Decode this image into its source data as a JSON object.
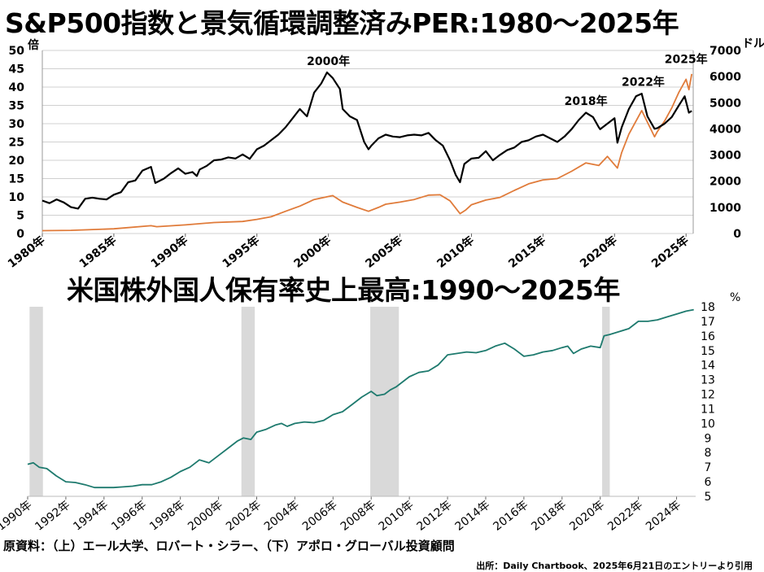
{
  "titles": {
    "top": "S&P500指数と景気循環調整済みPER:1980～2025年",
    "bottom": "米国株外国人保有率史上最高:1990～2025年"
  },
  "footer": {
    "source": "原資料：（上）エール大学、ロバート・シラー、（下）アポロ・グローバル投資顧問",
    "credit": "出所：Daily Chartbook、2025年6月21日のエントリーより引用"
  },
  "colors": {
    "cape": "#000000",
    "sp500": "#e07b3a",
    "foreign_share": "#1e7a6e",
    "recession": "#d9d9d9"
  },
  "chart_data": [
    {
      "type": "line",
      "left_unit": "倍",
      "right_unit": "ドル",
      "left_ticks": [
        "0",
        "5",
        "10",
        "15",
        "20",
        "25",
        "30",
        "35",
        "40",
        "45",
        "50"
      ],
      "right_ticks": [
        "0",
        "1000",
        "2000",
        "3000",
        "4000",
        "5000",
        "6000",
        "7000"
      ],
      "x_ticks": [
        "1980年",
        "1985年",
        "1990年",
        "1995年",
        "2000年",
        "2005年",
        "2010年",
        "2015年",
        "2020年",
        "2025年"
      ],
      "xlim": [
        1980,
        2025.5
      ],
      "ylim_left": [
        0,
        50
      ],
      "ylim_right": [
        0,
        7000
      ],
      "annotations": [
        {
          "text": "2000年",
          "x": 2000,
          "y": 44.2
        },
        {
          "text": "2018年",
          "x": 2018,
          "y": 33.3
        },
        {
          "text": "2022年",
          "x": 2022,
          "y": 38.6
        },
        {
          "text": "2025年",
          "x": 2025,
          "y": 44.8
        }
      ],
      "series": [
        {
          "axis": "left",
          "x": [
            1980,
            1980.5,
            1981,
            1981.5,
            1982,
            1982.5,
            1983,
            1983.5,
            1984,
            1984.5,
            1985,
            1985.5,
            1986,
            1986.5,
            1987,
            1987.6,
            1987.9,
            1988,
            1988.5,
            1989,
            1989.5,
            1990,
            1990.5,
            1990.8,
            1991,
            1991.5,
            1992,
            1992.5,
            1993,
            1993.5,
            1994,
            1994.5,
            1995,
            1995.5,
            1996,
            1996.5,
            1997,
            1997.5,
            1998,
            1998.5,
            1999,
            1999.5,
            1999.9,
            2000.3,
            2000.8,
            2001,
            2001.5,
            2002,
            2002.5,
            2002.8,
            2003,
            2003.5,
            2004,
            2004.5,
            2005,
            2005.5,
            2006,
            2006.5,
            2007,
            2007.5,
            2008,
            2008.5,
            2008.9,
            2009.2,
            2009.5,
            2010,
            2010.5,
            2011,
            2011.5,
            2012,
            2012.5,
            2013,
            2013.5,
            2014,
            2014.5,
            2015,
            2015.5,
            2016,
            2016.5,
            2017,
            2017.5,
            2018,
            2018.5,
            2018.9,
            2019,
            2019.5,
            2020,
            2020.2,
            2020.5,
            2021,
            2021.5,
            2021.9,
            2022.3,
            2022.8,
            2023,
            2023.5,
            2024,
            2024.5,
            2024.9,
            2025.2,
            2025.4
          ],
          "values": [
            9,
            8.3,
            9.3,
            8.5,
            7.2,
            6.8,
            9.5,
            9.8,
            9.5,
            9.3,
            10.6,
            11.3,
            14,
            14.5,
            17.2,
            18.2,
            13.8,
            14,
            15,
            16.5,
            17.8,
            16.3,
            16.8,
            15.7,
            17.5,
            18.5,
            20,
            20.2,
            20.8,
            20.5,
            21.6,
            20.4,
            23,
            24,
            25.5,
            27,
            29,
            31.5,
            34,
            32,
            38.5,
            41,
            44,
            42.5,
            39.5,
            34,
            32,
            31,
            25,
            23,
            24,
            26,
            27,
            26.5,
            26.3,
            26.8,
            27,
            26.8,
            27.5,
            25.5,
            24,
            20,
            16,
            14,
            19,
            20.5,
            20.7,
            22.5,
            20,
            21.5,
            22.8,
            23.5,
            25,
            25.5,
            26.5,
            27,
            26,
            25,
            26.5,
            28.5,
            31,
            33,
            31.8,
            29,
            28.5,
            30,
            31.5,
            24.8,
            29,
            34,
            37.5,
            38.2,
            32,
            28.6,
            28.8,
            30,
            31.8,
            35,
            37.5,
            33,
            33.5
          ]
        },
        {
          "axis": "right",
          "x": [
            1980,
            1982,
            1985,
            1987.6,
            1988,
            1990,
            1992,
            1994,
            1995,
            1996,
            1997,
            1998,
            1999,
            2000.3,
            2001,
            2002,
            2002.8,
            2003.5,
            2004,
            2005,
            2006,
            2007,
            2007.8,
            2008.5,
            2009.2,
            2009.6,
            2010,
            2011,
            2012,
            2013,
            2014,
            2015,
            2016,
            2017,
            2018,
            2018.9,
            2019.5,
            2020.2,
            2020.5,
            2021,
            2021.9,
            2022.8,
            2023,
            2023.5,
            2024,
            2024.5,
            2025,
            2025.2,
            2025.4
          ],
          "values": [
            110,
            120,
            180,
            300,
            260,
            330,
            420,
            460,
            540,
            640,
            850,
            1050,
            1300,
            1450,
            1200,
            1000,
            850,
            1000,
            1120,
            1200,
            1300,
            1470,
            1480,
            1250,
            760,
            900,
            1100,
            1280,
            1380,
            1650,
            1900,
            2050,
            2100,
            2380,
            2700,
            2600,
            2950,
            2500,
            3100,
            3800,
            4700,
            3700,
            3900,
            4300,
            4800,
            5400,
            5900,
            5500,
            6100
          ]
        }
      ]
    },
    {
      "type": "line",
      "unit": "%",
      "y_ticks": [
        "5",
        "6",
        "7",
        "8",
        "9",
        "10",
        "11",
        "12",
        "13",
        "14",
        "15",
        "16",
        "17",
        "18"
      ],
      "x_ticks": [
        "1990年",
        "1992年",
        "1994年",
        "1996年",
        "1998年",
        "2000年",
        "2002年",
        "2004年",
        "2006年",
        "2008年",
        "2010年",
        "2012年",
        "2014年",
        "2016年",
        "2018年",
        "2020年",
        "2022年",
        "2024年"
      ],
      "xlim": [
        1990,
        2025
      ],
      "ylim": [
        5,
        18
      ],
      "recessions": [
        [
          1990.1,
          1990.8
        ],
        [
          2001.2,
          2001.9
        ],
        [
          2007.95,
          2009.45
        ],
        [
          2020.1,
          2020.5
        ]
      ],
      "series": [
        {
          "name": "外国人保有率",
          "x": [
            1990,
            1990.3,
            1990.6,
            1991,
            1991.5,
            1992,
            1992.5,
            1993,
            1993.5,
            1994,
            1994.5,
            1995,
            1995.5,
            1996,
            1996.5,
            1997,
            1997.5,
            1998,
            1998.5,
            1999,
            1999.5,
            2000,
            2000.5,
            2001,
            2001.3,
            2001.7,
            2002,
            2002.5,
            2003,
            2003.3,
            2003.6,
            2004,
            2004.5,
            2005,
            2005.5,
            2006,
            2006.5,
            2007,
            2007.5,
            2008,
            2008.3,
            2008.7,
            2009,
            2009.3,
            2009.7,
            2010,
            2010.5,
            2011,
            2011.5,
            2012,
            2012.5,
            2013,
            2013.5,
            2014,
            2014.5,
            2015,
            2015.5,
            2016,
            2016.5,
            2017,
            2017.5,
            2018,
            2018.3,
            2018.6,
            2019,
            2019.5,
            2020,
            2020.2,
            2020.5,
            2021,
            2021.5,
            2022,
            2022.5,
            2023,
            2023.5,
            2024,
            2024.5,
            2024.9
          ],
          "values": [
            7.2,
            7.3,
            7.0,
            6.9,
            6.4,
            6.0,
            5.95,
            5.8,
            5.6,
            5.6,
            5.6,
            5.65,
            5.7,
            5.8,
            5.8,
            6.0,
            6.3,
            6.7,
            7.0,
            7.5,
            7.3,
            7.8,
            8.3,
            8.8,
            9.0,
            8.9,
            9.4,
            9.6,
            9.9,
            10.0,
            9.8,
            10.0,
            10.1,
            10.05,
            10.2,
            10.6,
            10.8,
            11.3,
            11.8,
            12.2,
            11.9,
            12.0,
            12.3,
            12.5,
            12.9,
            13.2,
            13.5,
            13.6,
            14.0,
            14.7,
            14.8,
            14.9,
            14.85,
            15.0,
            15.3,
            15.5,
            15.1,
            14.6,
            14.7,
            14.9,
            15.0,
            15.2,
            15.3,
            14.8,
            15.1,
            15.3,
            15.2,
            16.0,
            16.1,
            16.3,
            16.5,
            17.0,
            17.0,
            17.1,
            17.3,
            17.5,
            17.7,
            17.8
          ]
        }
      ]
    }
  ]
}
